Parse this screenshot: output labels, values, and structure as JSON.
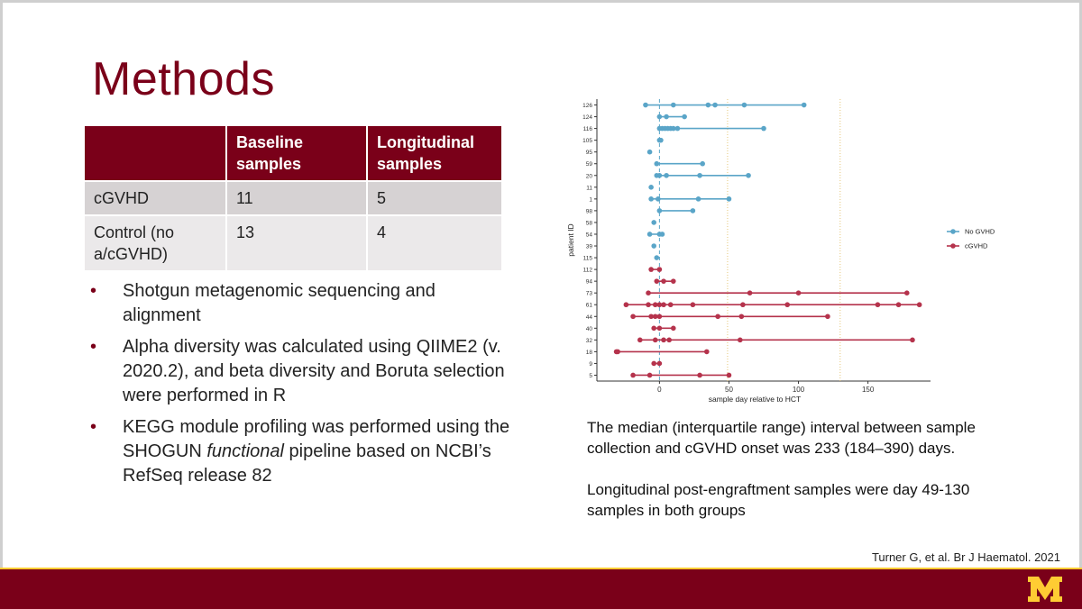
{
  "slide": {
    "title": "Methods",
    "citation": "Turner G, et al. Br J Haematol. 2021",
    "colors": {
      "maroon": "#7a0019",
      "gold": "#ffcc33"
    },
    "logo_icon": "university-m-logo"
  },
  "table": {
    "headers": [
      "",
      "Baseline samples",
      "Longitudinal samples"
    ],
    "rows": [
      {
        "label": "cGVHD",
        "baseline": "11",
        "longitudinal": "5"
      },
      {
        "label": "Control (no a/cGVHD)",
        "baseline": "13",
        "longitudinal": "4"
      }
    ]
  },
  "bullets": [
    {
      "text": "Shotgun metagenomic sequencing and alignment"
    },
    {
      "text": "Alpha diversity was calculated using QIIME2 (v. 2020.2), and beta diversity and Boruta selection were performed in R"
    },
    {
      "text_before": "KEGG module profiling was performed using the SHOGUN ",
      "text_italic": "functional",
      "text_after": " pipeline based on NCBI’s RefSeq release 82"
    }
  ],
  "description": {
    "p1": "The median (interquartile range) interval between sample collection and cGVHD onset was 233 (184–390) days.",
    "p2": "Longitudinal post-engraftment samples were day 49-130 samples in both groups"
  },
  "chart_data": {
    "type": "scatter",
    "xlabel": "sample day relative to HCT",
    "ylabel": "patient ID",
    "xlim": [
      -45,
      195
    ],
    "xticks": [
      0,
      50,
      100,
      150
    ],
    "vlines": {
      "dashed_blue": 0,
      "dotted_gold": [
        49,
        130
      ]
    },
    "legend_position": "right",
    "series": [
      {
        "name": "No GVHD",
        "color": "#5aa5c8",
        "patients": [
          {
            "id": "126",
            "days": [
              -10,
              10,
              35,
              40,
              61,
              104
            ]
          },
          {
            "id": "124",
            "days": [
              0,
              5,
              18
            ]
          },
          {
            "id": "116",
            "days": [
              0,
              2,
              4,
              6,
              8,
              10,
              13,
              75
            ]
          },
          {
            "id": "105",
            "days": [
              0,
              1
            ]
          },
          {
            "id": "95",
            "days": [
              -7
            ]
          },
          {
            "id": "59",
            "days": [
              -2,
              31
            ]
          },
          {
            "id": "20",
            "days": [
              -2,
              0,
              5,
              29,
              64
            ]
          },
          {
            "id": "11",
            "days": [
              -6
            ]
          },
          {
            "id": "1",
            "days": [
              -6,
              -1,
              28,
              50
            ]
          },
          {
            "id": "98",
            "days": [
              0,
              24
            ]
          },
          {
            "id": "58",
            "days": [
              -4
            ]
          },
          {
            "id": "54",
            "days": [
              -7,
              0,
              2
            ]
          },
          {
            "id": "39",
            "days": [
              -4
            ]
          },
          {
            "id": "115",
            "days": [
              -2
            ]
          }
        ]
      },
      {
        "name": "cGVHD",
        "color": "#b5334c",
        "patients": [
          {
            "id": "112",
            "days": [
              -6,
              0
            ]
          },
          {
            "id": "94",
            "days": [
              -2,
              3,
              10
            ]
          },
          {
            "id": "73",
            "days": [
              -8,
              65,
              100,
              178
            ]
          },
          {
            "id": "61",
            "days": [
              -24,
              -8,
              -3,
              0,
              3,
              8,
              24,
              60,
              92,
              157,
              172,
              187
            ]
          },
          {
            "id": "44",
            "days": [
              -19,
              -6,
              -3,
              0,
              42,
              59,
              121
            ]
          },
          {
            "id": "40",
            "days": [
              -4,
              0,
              10
            ]
          },
          {
            "id": "32",
            "days": [
              -14,
              -3,
              3,
              7,
              58,
              182
            ]
          },
          {
            "id": "18",
            "days": [
              -31,
              -30,
              34
            ]
          },
          {
            "id": "9",
            "days": [
              -4,
              0
            ]
          },
          {
            "id": "5",
            "days": [
              -19,
              -7,
              29,
              50
            ]
          }
        ]
      }
    ]
  }
}
